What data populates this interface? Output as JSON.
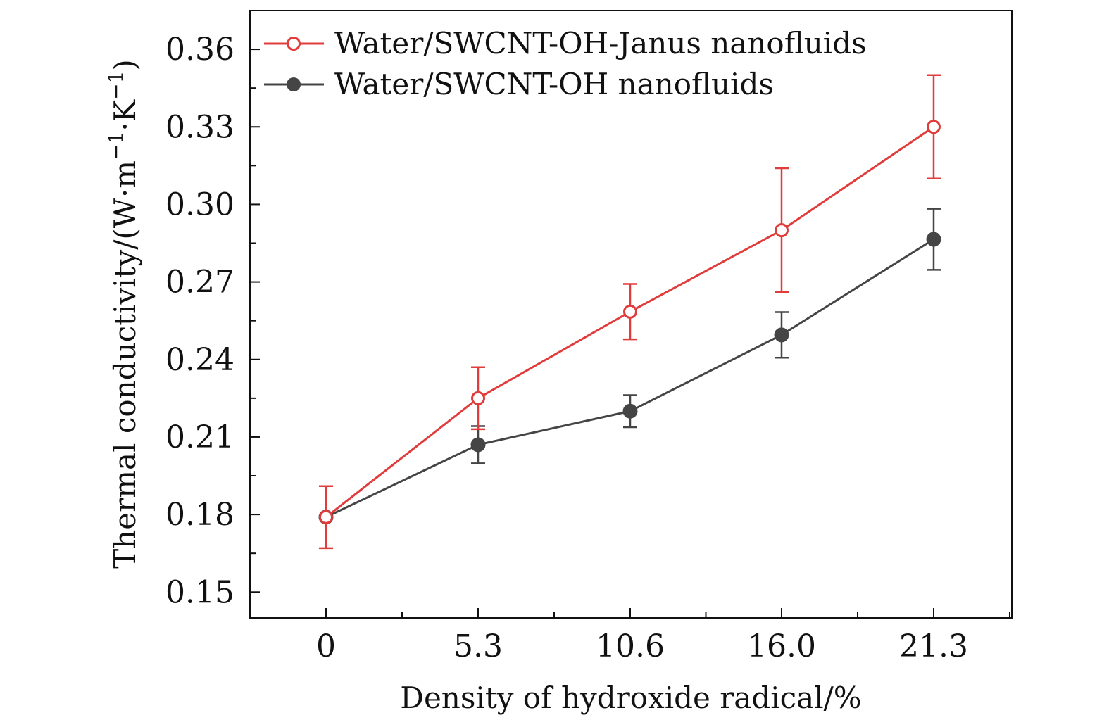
{
  "chart_data": {
    "type": "line",
    "title": "",
    "xlabel": "Density of hydroxide radical/%",
    "ylabel": "Thermal conductivity/(W·m",
    "ylabel_parts": [
      "Thermal conductivity/(W·m",
      "−1",
      "·K",
      "−1",
      ")"
    ],
    "categories": [
      "0",
      "5.3",
      "10.6",
      "16.0",
      "21.3"
    ],
    "ylim": [
      0.14,
      0.375
    ],
    "yticks": [
      "0.15",
      "0.18",
      "0.21",
      "0.24",
      "0.27",
      "0.30",
      "0.33",
      "0.36"
    ],
    "legend_position": "top-left",
    "series": [
      {
        "name": "Water/SWCNT-OH-Janus nanofluids",
        "color": "#e03c3c",
        "marker": "open-circle",
        "values": [
          0.179,
          0.225,
          0.2585,
          0.29,
          0.33
        ],
        "errors": [
          0.012,
          0.012,
          0.0107,
          0.024,
          0.02
        ]
      },
      {
        "name": "Water/SWCNT-OH nanofluids",
        "color": "#454545",
        "marker": "filled-circle",
        "values": [
          0.179,
          0.207,
          0.22,
          0.2495,
          0.2865
        ],
        "errors": [
          0.0,
          0.0072,
          0.0062,
          0.0088,
          0.0118
        ]
      }
    ]
  }
}
